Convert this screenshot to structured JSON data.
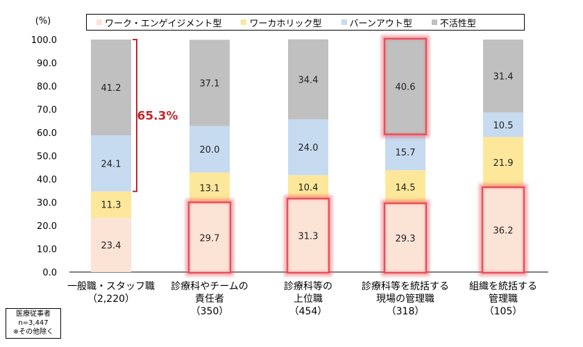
{
  "chart_data": {
    "type": "bar",
    "stacked": true,
    "y_unit_label": "(%)",
    "ylim": [
      0,
      100
    ],
    "yticks": [
      "100.0",
      "90.0",
      "80.0",
      "70.0",
      "60.0",
      "50.0",
      "40.0",
      "30.0",
      "20.0",
      "10.0",
      "0.0"
    ],
    "categories": [
      [
        "一般職・スタッフ職",
        "（2,220）"
      ],
      [
        "診療科やチームの",
        "責任者",
        "（350）"
      ],
      [
        "診療科等の",
        "上位職",
        "（454）"
      ],
      [
        "診療科等を統括する",
        "現場の管理職",
        "（318）"
      ],
      [
        "組織を統括する",
        "管理職",
        "（105）"
      ]
    ],
    "series": [
      {
        "name": "ワーク・エンゲイジメント型",
        "color": "#fbe3d6",
        "values": [
          23.4,
          29.7,
          31.3,
          29.3,
          36.2
        ],
        "labels": [
          "23.4",
          "29.7",
          "31.3",
          "29.3",
          "36.2"
        ]
      },
      {
        "name": "ワーカホリック型",
        "color": "#fde79a",
        "values": [
          11.3,
          13.1,
          10.4,
          14.5,
          21.9
        ],
        "labels": [
          "11.3",
          "13.1",
          "10.4",
          "14.5",
          "21.9"
        ]
      },
      {
        "name": "バーンアウト型",
        "color": "#c6daf0",
        "values": [
          24.1,
          20.0,
          24.0,
          15.7,
          10.5
        ],
        "labels": [
          "24.1",
          "20.0",
          "24.0",
          "15.7",
          "10.5"
        ]
      },
      {
        "name": "不活性型",
        "color": "#c0c0c0",
        "values": [
          41.2,
          37.1,
          34.4,
          40.6,
          31.4
        ],
        "labels": [
          "41.2",
          "37.1",
          "34.4",
          "40.6",
          "31.4"
        ]
      }
    ],
    "annotation": {
      "text": "65.3%",
      "category_index": 0,
      "from": 34.7,
      "to": 100,
      "color": "#c0262d"
    },
    "highlights": [
      {
        "category_index": 1,
        "series_index": 0
      },
      {
        "category_index": 2,
        "series_index": 0
      },
      {
        "category_index": 3,
        "series_index": 0
      },
      {
        "category_index": 3,
        "series_index": 3
      },
      {
        "category_index": 4,
        "series_index": 0
      }
    ],
    "highlight_color": "#e8505b"
  },
  "note": {
    "lines": [
      "医療従事者",
      "n=3,447",
      "※その他除く"
    ]
  }
}
